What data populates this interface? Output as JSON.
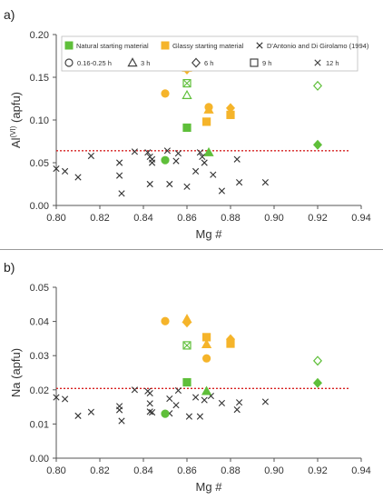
{
  "colors": {
    "natural": "#5fbf3a",
    "glassy": "#f5b42a",
    "literature": "#333333",
    "threshold_line": "#d62020",
    "axis": "#555555"
  },
  "legend": {
    "sources": [
      {
        "label": "Natural starting material",
        "marker": "filled-square",
        "color": "#5fbf3a"
      },
      {
        "label": "Glassy starting material",
        "marker": "filled-square",
        "color": "#f5b42a"
      },
      {
        "label": "D'Antonio and Di Girolamo (1994)",
        "marker": "x",
        "color": "#333333"
      }
    ],
    "durations": [
      {
        "label": "0.16-0.25 h",
        "marker": "circle"
      },
      {
        "label": "3 h",
        "marker": "triangle"
      },
      {
        "label": "6 h",
        "marker": "diamond"
      },
      {
        "label": "9 h",
        "marker": "square"
      },
      {
        "label": "12 h",
        "marker": "x"
      }
    ]
  },
  "chart_data": [
    {
      "panel_label": "a)",
      "type": "scatter",
      "xlabel": "Mg #",
      "ylabel_main": "Al",
      "ylabel_sup": "(VI)",
      "ylabel_rest": " (apfu)",
      "xlim": [
        0.8,
        0.94
      ],
      "ylim": [
        0.0,
        0.2
      ],
      "xticks": [
        "0.80",
        "0.82",
        "0.84",
        "0.86",
        "0.88",
        "0.90",
        "0.92",
        "0.94"
      ],
      "yticks": [
        "0.00",
        "0.05",
        "0.10",
        "0.15",
        "0.20"
      ],
      "threshold_y": 0.064,
      "has_legend": true,
      "points": [
        {
          "x": 0.85,
          "y": 0.131,
          "marker": "circle",
          "source": "glassy",
          "filled": true
        },
        {
          "x": 0.85,
          "y": 0.053,
          "marker": "circle",
          "source": "natural",
          "filled": true
        },
        {
          "x": 0.86,
          "y": 0.161,
          "marker": "triangle",
          "source": "glassy",
          "filled": true
        },
        {
          "x": 0.86,
          "y": 0.159,
          "marker": "diamond",
          "source": "glassy",
          "filled": true
        },
        {
          "x": 0.86,
          "y": 0.143,
          "marker": "square",
          "source": "natural",
          "filled": false
        },
        {
          "x": 0.86,
          "y": 0.143,
          "marker": "x",
          "source": "natural",
          "filled": false
        },
        {
          "x": 0.86,
          "y": 0.129,
          "marker": "triangle",
          "source": "natural",
          "filled": false
        },
        {
          "x": 0.86,
          "y": 0.091,
          "marker": "square",
          "source": "natural",
          "filled": true
        },
        {
          "x": 0.87,
          "y": 0.115,
          "marker": "circle",
          "source": "glassy",
          "filled": true
        },
        {
          "x": 0.87,
          "y": 0.112,
          "marker": "triangle",
          "source": "glassy",
          "filled": true
        },
        {
          "x": 0.869,
          "y": 0.098,
          "marker": "square",
          "source": "glassy",
          "filled": true
        },
        {
          "x": 0.87,
          "y": 0.062,
          "marker": "triangle",
          "source": "natural",
          "filled": true
        },
        {
          "x": 0.88,
          "y": 0.114,
          "marker": "diamond",
          "source": "glassy",
          "filled": true
        },
        {
          "x": 0.88,
          "y": 0.106,
          "marker": "square",
          "source": "glassy",
          "filled": true
        },
        {
          "x": 0.92,
          "y": 0.14,
          "marker": "diamond",
          "source": "natural",
          "filled": false
        },
        {
          "x": 0.92,
          "y": 0.071,
          "marker": "diamond",
          "source": "natural",
          "filled": true
        },
        {
          "x": 0.8,
          "y": 0.043,
          "marker": "x",
          "source": "literature"
        },
        {
          "x": 0.804,
          "y": 0.04,
          "marker": "x",
          "source": "literature"
        },
        {
          "x": 0.81,
          "y": 0.033,
          "marker": "x",
          "source": "literature"
        },
        {
          "x": 0.816,
          "y": 0.058,
          "marker": "x",
          "source": "literature"
        },
        {
          "x": 0.829,
          "y": 0.05,
          "marker": "x",
          "source": "literature"
        },
        {
          "x": 0.829,
          "y": 0.035,
          "marker": "x",
          "source": "literature"
        },
        {
          "x": 0.83,
          "y": 0.014,
          "marker": "x",
          "source": "literature"
        },
        {
          "x": 0.836,
          "y": 0.063,
          "marker": "x",
          "source": "literature"
        },
        {
          "x": 0.842,
          "y": 0.062,
          "marker": "x",
          "source": "literature"
        },
        {
          "x": 0.843,
          "y": 0.057,
          "marker": "x",
          "source": "literature"
        },
        {
          "x": 0.844,
          "y": 0.054,
          "marker": "x",
          "source": "literature"
        },
        {
          "x": 0.844,
          "y": 0.05,
          "marker": "x",
          "source": "literature"
        },
        {
          "x": 0.843,
          "y": 0.025,
          "marker": "x",
          "source": "literature"
        },
        {
          "x": 0.851,
          "y": 0.064,
          "marker": "x",
          "source": "literature"
        },
        {
          "x": 0.852,
          "y": 0.025,
          "marker": "x",
          "source": "literature"
        },
        {
          "x": 0.856,
          "y": 0.061,
          "marker": "x",
          "source": "literature"
        },
        {
          "x": 0.855,
          "y": 0.052,
          "marker": "x",
          "source": "literature"
        },
        {
          "x": 0.86,
          "y": 0.022,
          "marker": "x",
          "source": "literature"
        },
        {
          "x": 0.864,
          "y": 0.04,
          "marker": "x",
          "source": "literature"
        },
        {
          "x": 0.866,
          "y": 0.062,
          "marker": "x",
          "source": "literature"
        },
        {
          "x": 0.867,
          "y": 0.057,
          "marker": "x",
          "source": "literature"
        },
        {
          "x": 0.868,
          "y": 0.05,
          "marker": "x",
          "source": "literature"
        },
        {
          "x": 0.872,
          "y": 0.036,
          "marker": "x",
          "source": "literature"
        },
        {
          "x": 0.876,
          "y": 0.017,
          "marker": "x",
          "source": "literature"
        },
        {
          "x": 0.883,
          "y": 0.054,
          "marker": "x",
          "source": "literature"
        },
        {
          "x": 0.884,
          "y": 0.027,
          "marker": "x",
          "source": "literature"
        },
        {
          "x": 0.896,
          "y": 0.027,
          "marker": "x",
          "source": "literature"
        }
      ]
    },
    {
      "panel_label": "b)",
      "type": "scatter",
      "xlabel": "Mg #",
      "ylabel_main": "Na",
      "ylabel_sup": "",
      "ylabel_rest": " (apfu)",
      "xlim": [
        0.8,
        0.94
      ],
      "ylim": [
        0.0,
        0.05
      ],
      "xticks": [
        "0.80",
        "0.82",
        "0.84",
        "0.86",
        "0.88",
        "0.90",
        "0.92",
        "0.94"
      ],
      "yticks": [
        "0.00",
        "0.01",
        "0.02",
        "0.03",
        "0.04",
        "0.05"
      ],
      "threshold_y": 0.0204,
      "has_legend": false,
      "points": [
        {
          "x": 0.85,
          "y": 0.0401,
          "marker": "circle",
          "source": "glassy",
          "filled": true
        },
        {
          "x": 0.85,
          "y": 0.013,
          "marker": "circle",
          "source": "natural",
          "filled": true
        },
        {
          "x": 0.86,
          "y": 0.0407,
          "marker": "triangle",
          "source": "glassy",
          "filled": true
        },
        {
          "x": 0.86,
          "y": 0.0397,
          "marker": "diamond",
          "source": "glassy",
          "filled": true
        },
        {
          "x": 0.86,
          "y": 0.033,
          "marker": "square",
          "source": "natural",
          "filled": false
        },
        {
          "x": 0.86,
          "y": 0.033,
          "marker": "x",
          "source": "natural",
          "filled": false
        },
        {
          "x": 0.86,
          "y": 0.0222,
          "marker": "square",
          "source": "natural",
          "filled": true
        },
        {
          "x": 0.869,
          "y": 0.0354,
          "marker": "square",
          "source": "glassy",
          "filled": true
        },
        {
          "x": 0.869,
          "y": 0.0333,
          "marker": "triangle",
          "source": "glassy",
          "filled": true
        },
        {
          "x": 0.869,
          "y": 0.0292,
          "marker": "circle",
          "source": "glassy",
          "filled": true
        },
        {
          "x": 0.869,
          "y": 0.0196,
          "marker": "triangle",
          "source": "natural",
          "filled": true
        },
        {
          "x": 0.88,
          "y": 0.0348,
          "marker": "diamond",
          "source": "glassy",
          "filled": true
        },
        {
          "x": 0.88,
          "y": 0.0335,
          "marker": "square",
          "source": "glassy",
          "filled": true
        },
        {
          "x": 0.92,
          "y": 0.0285,
          "marker": "diamond",
          "source": "natural",
          "filled": false
        },
        {
          "x": 0.92,
          "y": 0.022,
          "marker": "diamond",
          "source": "natural",
          "filled": true
        },
        {
          "x": 0.8,
          "y": 0.0178,
          "marker": "x",
          "source": "literature"
        },
        {
          "x": 0.804,
          "y": 0.0173,
          "marker": "x",
          "source": "literature"
        },
        {
          "x": 0.81,
          "y": 0.0124,
          "marker": "x",
          "source": "literature"
        },
        {
          "x": 0.816,
          "y": 0.0135,
          "marker": "x",
          "source": "literature"
        },
        {
          "x": 0.829,
          "y": 0.0152,
          "marker": "x",
          "source": "literature"
        },
        {
          "x": 0.829,
          "y": 0.0141,
          "marker": "x",
          "source": "literature"
        },
        {
          "x": 0.83,
          "y": 0.0109,
          "marker": "x",
          "source": "literature"
        },
        {
          "x": 0.836,
          "y": 0.02,
          "marker": "x",
          "source": "literature"
        },
        {
          "x": 0.842,
          "y": 0.0196,
          "marker": "x",
          "source": "literature"
        },
        {
          "x": 0.843,
          "y": 0.019,
          "marker": "x",
          "source": "literature"
        },
        {
          "x": 0.843,
          "y": 0.016,
          "marker": "x",
          "source": "literature"
        },
        {
          "x": 0.843,
          "y": 0.0136,
          "marker": "x",
          "source": "literature"
        },
        {
          "x": 0.844,
          "y": 0.0134,
          "marker": "x",
          "source": "literature"
        },
        {
          "x": 0.852,
          "y": 0.0174,
          "marker": "x",
          "source": "literature"
        },
        {
          "x": 0.852,
          "y": 0.0131,
          "marker": "x",
          "source": "literature"
        },
        {
          "x": 0.856,
          "y": 0.0198,
          "marker": "x",
          "source": "literature"
        },
        {
          "x": 0.855,
          "y": 0.0155,
          "marker": "x",
          "source": "literature"
        },
        {
          "x": 0.861,
          "y": 0.0122,
          "marker": "x",
          "source": "literature"
        },
        {
          "x": 0.864,
          "y": 0.0178,
          "marker": "x",
          "source": "literature"
        },
        {
          "x": 0.866,
          "y": 0.0122,
          "marker": "x",
          "source": "literature"
        },
        {
          "x": 0.868,
          "y": 0.017,
          "marker": "x",
          "source": "literature"
        },
        {
          "x": 0.871,
          "y": 0.0182,
          "marker": "x",
          "source": "literature"
        },
        {
          "x": 0.876,
          "y": 0.0161,
          "marker": "x",
          "source": "literature"
        },
        {
          "x": 0.883,
          "y": 0.0142,
          "marker": "x",
          "source": "literature"
        },
        {
          "x": 0.884,
          "y": 0.0163,
          "marker": "x",
          "source": "literature"
        },
        {
          "x": 0.896,
          "y": 0.0165,
          "marker": "x",
          "source": "literature"
        }
      ]
    }
  ]
}
